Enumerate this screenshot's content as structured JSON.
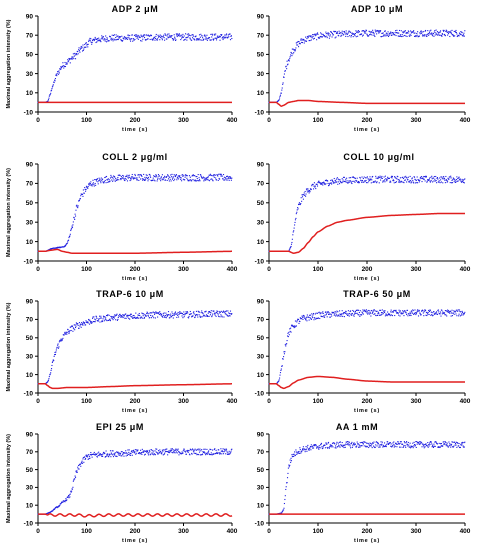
{
  "figure": {
    "ylabel": "Maximal aggregation intensity (%)",
    "xlabel": "time (s)"
  },
  "chart_data": [
    {
      "type": "line",
      "title": "ADP 2 μM",
      "xlabel": "time (s)",
      "ylabel": "Maximal aggregation intensity (%)",
      "xlim": [
        0,
        400
      ],
      "ylim": [
        -10,
        90
      ],
      "xticks": [
        "0",
        "100",
        "200",
        "300",
        "400"
      ],
      "yticks": [
        "-10",
        "10",
        "30",
        "50",
        "70",
        "90"
      ],
      "series": [
        {
          "color": "#1f1fe0",
          "style": "dotted",
          "x": [
            0,
            15,
            20,
            25,
            30,
            40,
            50,
            60,
            75,
            90,
            110,
            130,
            150,
            200,
            250,
            300,
            350,
            400
          ],
          "y": [
            0,
            0,
            1,
            8,
            17,
            30,
            38,
            42,
            48,
            56,
            64,
            66,
            67,
            67,
            68,
            68,
            68,
            68
          ]
        },
        {
          "color": "#e01f1f",
          "style": "solid",
          "x": [
            0,
            400
          ],
          "y": [
            0,
            0
          ]
        }
      ]
    },
    {
      "type": "line",
      "title": "ADP 10 μM",
      "xlabel": "time (s)",
      "ylabel": "",
      "xlim": [
        0,
        400
      ],
      "ylim": [
        -10,
        90
      ],
      "xticks": [
        "0",
        "100",
        "200",
        "300",
        "400"
      ],
      "yticks": [
        "-10",
        "10",
        "30",
        "50",
        "70",
        "90"
      ],
      "series": [
        {
          "color": "#1f1fe0",
          "style": "dotted",
          "x": [
            0,
            15,
            20,
            25,
            30,
            35,
            40,
            50,
            60,
            70,
            90,
            110,
            150,
            200,
            250,
            300,
            350,
            400
          ],
          "y": [
            0,
            0,
            2,
            10,
            25,
            37,
            45,
            55,
            61,
            65,
            68,
            70,
            71,
            72,
            72,
            72,
            72,
            72
          ]
        },
        {
          "color": "#e01f1f",
          "style": "solid",
          "x": [
            0,
            15,
            20,
            25,
            30,
            40,
            50,
            60,
            80,
            100,
            150,
            200,
            300,
            400
          ],
          "y": [
            0,
            0,
            -2,
            -4,
            -3,
            0,
            1,
            2,
            2,
            1,
            0,
            -1,
            -1,
            -1
          ]
        }
      ]
    },
    {
      "type": "line",
      "title": "COLL 2 μg/ml",
      "xlabel": "time (s)",
      "ylabel": "Maximal aggregation intensity (%)",
      "xlim": [
        0,
        400
      ],
      "ylim": [
        -10,
        90
      ],
      "xticks": [
        "0",
        "100",
        "200",
        "300",
        "400"
      ],
      "yticks": [
        "-10",
        "10",
        "30",
        "50",
        "70",
        "90"
      ],
      "series": [
        {
          "color": "#1f1fe0",
          "style": "dotted",
          "x": [
            0,
            15,
            30,
            45,
            55,
            60,
            65,
            70,
            75,
            80,
            90,
            100,
            110,
            130,
            150,
            200,
            250,
            300,
            350,
            400
          ],
          "y": [
            0,
            0,
            3,
            4,
            5,
            8,
            15,
            25,
            35,
            45,
            58,
            65,
            70,
            73,
            75,
            76,
            76,
            76,
            76,
            76
          ]
        },
        {
          "color": "#e01f1f",
          "style": "solid",
          "x": [
            0,
            15,
            25,
            40,
            50,
            60,
            70,
            100,
            150,
            200,
            300,
            400
          ],
          "y": [
            0,
            0,
            1,
            2,
            0,
            -1,
            -2,
            -2,
            -2,
            -2,
            -1,
            0
          ]
        }
      ]
    },
    {
      "type": "line",
      "title": "COLL 10 μg/ml",
      "xlabel": "time (s)",
      "ylabel": "",
      "xlim": [
        0,
        400
      ],
      "ylim": [
        -10,
        90
      ],
      "xticks": [
        "0",
        "100",
        "200",
        "300",
        "400"
      ],
      "yticks": [
        "-10",
        "10",
        "30",
        "50",
        "70",
        "90"
      ],
      "series": [
        {
          "color": "#1f1fe0",
          "style": "dotted",
          "x": [
            0,
            15,
            40,
            45,
            50,
            55,
            60,
            70,
            80,
            90,
            110,
            130,
            150,
            200,
            250,
            300,
            350,
            400
          ],
          "y": [
            0,
            0,
            0,
            5,
            20,
            35,
            46,
            57,
            63,
            67,
            70,
            72,
            73,
            74,
            74,
            74,
            74,
            74
          ]
        },
        {
          "color": "#e01f1f",
          "style": "solid",
          "x": [
            0,
            15,
            40,
            50,
            60,
            70,
            80,
            90,
            100,
            120,
            140,
            160,
            200,
            250,
            300,
            350,
            400
          ],
          "y": [
            0,
            0,
            0,
            -2,
            -1,
            3,
            9,
            15,
            20,
            26,
            30,
            32,
            35,
            37,
            38,
            39,
            39
          ]
        }
      ]
    },
    {
      "type": "line",
      "title": "TRAP-6 10 μM",
      "xlabel": "time (s)",
      "ylabel": "Maximal aggregation intensity (%)",
      "xlim": [
        0,
        400
      ],
      "ylim": [
        -10,
        90
      ],
      "xticks": [
        "0",
        "100",
        "200",
        "300",
        "400"
      ],
      "yticks": [
        "-10",
        "10",
        "30",
        "50",
        "70",
        "90"
      ],
      "series": [
        {
          "color": "#1f1fe0",
          "style": "dotted",
          "x": [
            0,
            15,
            20,
            25,
            30,
            35,
            40,
            50,
            60,
            70,
            80,
            100,
            120,
            150,
            200,
            250,
            300,
            350,
            400
          ],
          "y": [
            0,
            0,
            2,
            10,
            22,
            32,
            40,
            50,
            56,
            60,
            63,
            67,
            70,
            72,
            74,
            75,
            75,
            76,
            76
          ]
        },
        {
          "color": "#e01f1f",
          "style": "solid",
          "x": [
            0,
            15,
            20,
            25,
            30,
            40,
            60,
            100,
            150,
            200,
            300,
            400
          ],
          "y": [
            0,
            0,
            -2,
            -4,
            -5,
            -5,
            -4,
            -4,
            -3,
            -2,
            -1,
            0
          ]
        }
      ]
    },
    {
      "type": "line",
      "title": "TRAP-6 50 μM",
      "xlabel": "time (s)",
      "ylabel": "",
      "xlim": [
        0,
        400
      ],
      "ylim": [
        -10,
        90
      ],
      "xticks": [
        "0",
        "100",
        "200",
        "300",
        "400"
      ],
      "yticks": [
        "-10",
        "10",
        "30",
        "50",
        "70",
        "90"
      ],
      "series": [
        {
          "color": "#1f1fe0",
          "style": "dotted",
          "x": [
            0,
            15,
            20,
            25,
            30,
            35,
            40,
            50,
            60,
            70,
            90,
            110,
            150,
            200,
            250,
            300,
            350,
            400
          ],
          "y": [
            0,
            0,
            3,
            15,
            32,
            45,
            55,
            63,
            68,
            71,
            73,
            75,
            76,
            77,
            77,
            77,
            77,
            77
          ]
        },
        {
          "color": "#e01f1f",
          "style": "solid",
          "x": [
            0,
            15,
            20,
            25,
            30,
            40,
            50,
            60,
            80,
            100,
            130,
            160,
            200,
            250,
            300,
            350,
            400
          ],
          "y": [
            0,
            0,
            -2,
            -4,
            -5,
            -3,
            1,
            4,
            7,
            8,
            7,
            5,
            3,
            2,
            2,
            2,
            2
          ]
        }
      ]
    },
    {
      "type": "line",
      "title": "EPI 25 μM",
      "xlabel": "time (s)",
      "ylabel": "Maximal aggregation intensity (%)",
      "xlim": [
        0,
        400
      ],
      "ylim": [
        -10,
        90
      ],
      "xticks": [
        "0",
        "100",
        "200",
        "300",
        "400"
      ],
      "yticks": [
        "-10",
        "10",
        "30",
        "50",
        "70",
        "90"
      ],
      "series": [
        {
          "color": "#1f1fe0",
          "style": "dotted",
          "x": [
            0,
            15,
            25,
            40,
            55,
            65,
            70,
            75,
            80,
            90,
            100,
            110,
            130,
            150,
            200,
            250,
            300,
            350,
            400
          ],
          "y": [
            0,
            0,
            2,
            8,
            15,
            20,
            28,
            38,
            48,
            58,
            64,
            66,
            67,
            68,
            69,
            70,
            70,
            70,
            70
          ]
        },
        {
          "color": "#e01f1f",
          "style": "solid",
          "x": [
            0,
            15,
            20,
            40,
            60,
            80,
            100,
            150,
            200,
            250,
            300,
            350,
            400
          ],
          "y": [
            0,
            0,
            -1,
            -1,
            -1,
            -1,
            -2,
            -1,
            -1,
            -1,
            -1,
            -1,
            -1
          ]
        }
      ]
    },
    {
      "type": "line",
      "title": "AA 1 mM",
      "xlabel": "time (s)",
      "ylabel": "",
      "xlim": [
        0,
        400
      ],
      "ylim": [
        -10,
        90
      ],
      "xticks": [
        "0",
        "100",
        "200",
        "300",
        "400"
      ],
      "yticks": [
        "-10",
        "10",
        "30",
        "50",
        "70",
        "90"
      ],
      "series": [
        {
          "color": "#1f1fe0",
          "style": "dotted",
          "x": [
            0,
            15,
            25,
            30,
            35,
            40,
            45,
            50,
            60,
            70,
            80,
            100,
            120,
            150,
            200,
            250,
            300,
            350,
            400
          ],
          "y": [
            0,
            0,
            1,
            5,
            30,
            52,
            62,
            67,
            71,
            73,
            74,
            76,
            77,
            78,
            78,
            78,
            78,
            78,
            78
          ]
        },
        {
          "color": "#e01f1f",
          "style": "solid",
          "x": [
            0,
            400
          ],
          "y": [
            0,
            0
          ]
        }
      ]
    }
  ]
}
